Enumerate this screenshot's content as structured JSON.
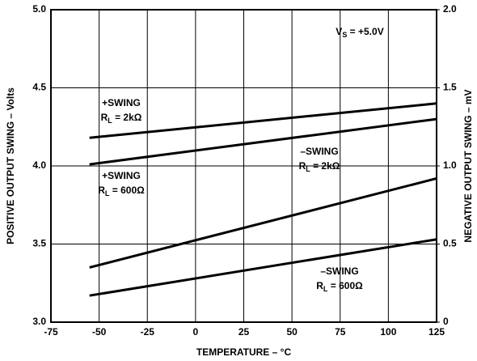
{
  "chart_data": {
    "type": "line",
    "xlabel": "TEMPERATURE – °C",
    "ylabel": "POSITIVE OUTPUT SWING – Volts",
    "y2label": "NEGATIVE OUTPUT SWING – mV",
    "annotation": {
      "main": "V",
      "sub": "S",
      "rest": " = +5.0V"
    },
    "x": [
      -55,
      125
    ],
    "xlim": [
      -75,
      125
    ],
    "xticks": [
      -75,
      -50,
      -25,
      0,
      25,
      50,
      75,
      100,
      125
    ],
    "ylim": [
      3,
      5
    ],
    "yticks": [
      {
        "value": 3,
        "label": "3.0"
      },
      {
        "value": 3.5,
        "label": "3.5"
      },
      {
        "value": 4,
        "label": "4.0"
      },
      {
        "value": 4.5,
        "label": "4.5"
      },
      {
        "value": 5,
        "label": "5.0"
      }
    ],
    "y2lim": [
      0,
      2
    ],
    "y2ticks": [
      0,
      0.5,
      {
        "value": 1,
        "label": "1.0"
      },
      1.5,
      {
        "value": 2,
        "label": "2.0"
      }
    ],
    "grid": true,
    "series": [
      {
        "name": "+SWING",
        "label": {
          "main": "R",
          "sub": "L",
          "rest": " = 2kΩ"
        },
        "color": "#000000",
        "values": [
          4.18,
          4.4
        ]
      },
      {
        "name": "+SWING",
        "label": {
          "main": "R",
          "sub": "L",
          "rest": " = 600Ω"
        },
        "color": "#000000",
        "values": [
          4.01,
          4.3
        ]
      },
      {
        "name": "–SWING",
        "label": {
          "main": "R",
          "sub": "L",
          "rest": " = 2kΩ"
        },
        "color": "#000000",
        "axis": "y2",
        "values": [
          0.35,
          0.92
        ]
      },
      {
        "name": "–SWING",
        "label": {
          "main": "R",
          "sub": "L",
          "rest": " = 600Ω"
        },
        "color": "#000000",
        "axis": "y2",
        "values": [
          0.17,
          0.53
        ]
      }
    ]
  }
}
